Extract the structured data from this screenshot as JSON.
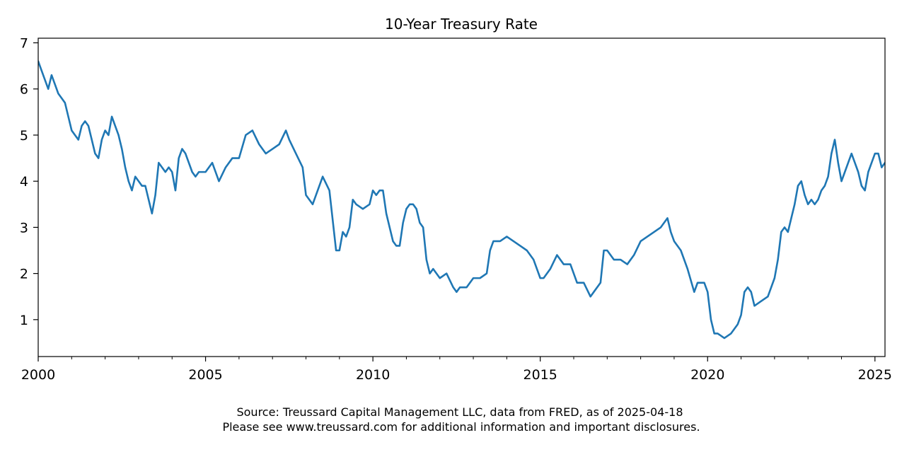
{
  "chart_data": {
    "type": "line",
    "title": "10-Year Treasury Rate",
    "xlabel": "",
    "ylabel": "",
    "xlim": [
      2000,
      2025.3
    ],
    "ylim": [
      0.2,
      7.1
    ],
    "grid": false,
    "legend": "none",
    "x_ticks": [
      2000,
      2005,
      2010,
      2015,
      2020,
      2025
    ],
    "x_tick_labels": [
      "2000",
      "2005",
      "2010",
      "2015",
      "2020",
      "2025"
    ],
    "y_ticks": [
      1,
      2,
      3,
      4,
      5,
      6,
      7
    ],
    "y_tick_labels": [
      "1",
      "2",
      "3",
      "4",
      "5",
      "6",
      "7"
    ],
    "series": [
      {
        "name": "10-Year Treasury Rate",
        "color": "#1f77b4",
        "x": [
          2000.0,
          2000.1,
          2000.2,
          2000.3,
          2000.4,
          2000.5,
          2000.6,
          2000.7,
          2000.8,
          2000.9,
          2001.0,
          2001.1,
          2001.2,
          2001.3,
          2001.4,
          2001.5,
          2001.6,
          2001.7,
          2001.8,
          2001.9,
          2002.0,
          2002.1,
          2002.2,
          2002.3,
          2002.4,
          2002.5,
          2002.6,
          2002.7,
          2002.8,
          2002.9,
          2003.0,
          2003.1,
          2003.2,
          2003.3,
          2003.4,
          2003.5,
          2003.6,
          2003.7,
          2003.8,
          2003.9,
          2004.0,
          2004.1,
          2004.2,
          2004.3,
          2004.4,
          2004.5,
          2004.6,
          2004.7,
          2004.8,
          2004.9,
          2005.0,
          2005.2,
          2005.4,
          2005.6,
          2005.8,
          2006.0,
          2006.2,
          2006.4,
          2006.6,
          2006.8,
          2007.0,
          2007.2,
          2007.4,
          2007.5,
          2007.7,
          2007.9,
          2008.0,
          2008.2,
          2008.4,
          2008.5,
          2008.7,
          2008.9,
          2009.0,
          2009.1,
          2009.2,
          2009.3,
          2009.4,
          2009.5,
          2009.7,
          2009.9,
          2010.0,
          2010.1,
          2010.2,
          2010.3,
          2010.4,
          2010.5,
          2010.6,
          2010.7,
          2010.8,
          2010.9,
          2011.0,
          2011.1,
          2011.2,
          2011.3,
          2011.4,
          2011.5,
          2011.6,
          2011.7,
          2011.8,
          2011.9,
          2012.0,
          2012.2,
          2012.4,
          2012.5,
          2012.6,
          2012.8,
          2013.0,
          2013.2,
          2013.4,
          2013.5,
          2013.6,
          2013.8,
          2014.0,
          2014.2,
          2014.4,
          2014.6,
          2014.8,
          2015.0,
          2015.1,
          2015.3,
          2015.5,
          2015.7,
          2015.9,
          2016.1,
          2016.3,
          2016.5,
          2016.6,
          2016.8,
          2016.9,
          2017.0,
          2017.2,
          2017.4,
          2017.6,
          2017.8,
          2018.0,
          2018.2,
          2018.4,
          2018.6,
          2018.8,
          2018.9,
          2019.0,
          2019.2,
          2019.4,
          2019.6,
          2019.7,
          2019.9,
          2020.0,
          2020.1,
          2020.2,
          2020.3,
          2020.5,
          2020.7,
          2020.9,
          2021.0,
          2021.1,
          2021.2,
          2021.3,
          2021.4,
          2021.6,
          2021.8,
          2021.9,
          2022.0,
          2022.1,
          2022.2,
          2022.3,
          2022.4,
          2022.5,
          2022.6,
          2022.7,
          2022.8,
          2022.9,
          2023.0,
          2023.1,
          2023.2,
          2023.3,
          2023.4,
          2023.5,
          2023.6,
          2023.7,
          2023.8,
          2023.9,
          2024.0,
          2024.1,
          2024.2,
          2024.3,
          2024.4,
          2024.5,
          2024.6,
          2024.7,
          2024.8,
          2024.9,
          2025.0,
          2025.1,
          2025.2,
          2025.3
        ],
        "values": [
          6.6,
          6.4,
          6.2,
          6.0,
          6.3,
          6.1,
          5.9,
          5.8,
          5.7,
          5.4,
          5.1,
          5.0,
          4.9,
          5.2,
          5.3,
          5.2,
          4.9,
          4.6,
          4.5,
          4.9,
          5.1,
          5.0,
          5.4,
          5.2,
          5.0,
          4.7,
          4.3,
          4.0,
          3.8,
          4.1,
          4.0,
          3.9,
          3.9,
          3.6,
          3.3,
          3.7,
          4.4,
          4.3,
          4.2,
          4.3,
          4.2,
          3.8,
          4.5,
          4.7,
          4.6,
          4.4,
          4.2,
          4.1,
          4.2,
          4.2,
          4.2,
          4.4,
          4.0,
          4.3,
          4.5,
          4.5,
          5.0,
          5.1,
          4.8,
          4.6,
          4.7,
          4.8,
          5.1,
          4.9,
          4.6,
          4.3,
          3.7,
          3.5,
          3.9,
          4.1,
          3.8,
          2.5,
          2.5,
          2.9,
          2.8,
          3.0,
          3.6,
          3.5,
          3.4,
          3.5,
          3.8,
          3.7,
          3.8,
          3.8,
          3.3,
          3.0,
          2.7,
          2.6,
          2.6,
          3.1,
          3.4,
          3.5,
          3.5,
          3.4,
          3.1,
          3.0,
          2.3,
          2.0,
          2.1,
          2.0,
          1.9,
          2.0,
          1.7,
          1.6,
          1.7,
          1.7,
          1.9,
          1.9,
          2.0,
          2.5,
          2.7,
          2.7,
          2.8,
          2.7,
          2.6,
          2.5,
          2.3,
          1.9,
          1.9,
          2.1,
          2.4,
          2.2,
          2.2,
          1.8,
          1.8,
          1.5,
          1.6,
          1.8,
          2.5,
          2.5,
          2.3,
          2.3,
          2.2,
          2.4,
          2.7,
          2.8,
          2.9,
          3.0,
          3.2,
          2.9,
          2.7,
          2.5,
          2.1,
          1.6,
          1.8,
          1.8,
          1.6,
          1.0,
          0.7,
          0.7,
          0.6,
          0.7,
          0.9,
          1.1,
          1.6,
          1.7,
          1.6,
          1.3,
          1.4,
          1.5,
          1.7,
          1.9,
          2.3,
          2.9,
          3.0,
          2.9,
          3.2,
          3.5,
          3.9,
          4.0,
          3.7,
          3.5,
          3.6,
          3.5,
          3.6,
          3.8,
          3.9,
          4.1,
          4.6,
          4.9,
          4.4,
          4.0,
          4.2,
          4.4,
          4.6,
          4.4,
          4.2,
          3.9,
          3.8,
          4.2,
          4.4,
          4.6,
          4.6,
          4.3,
          4.4
        ]
      }
    ]
  },
  "footer": {
    "line1": "Source: Treussard Capital Management LLC, data from FRED, as of 2025-04-18",
    "line2": "Please see www.treussard.com for additional information and important disclosures."
  }
}
